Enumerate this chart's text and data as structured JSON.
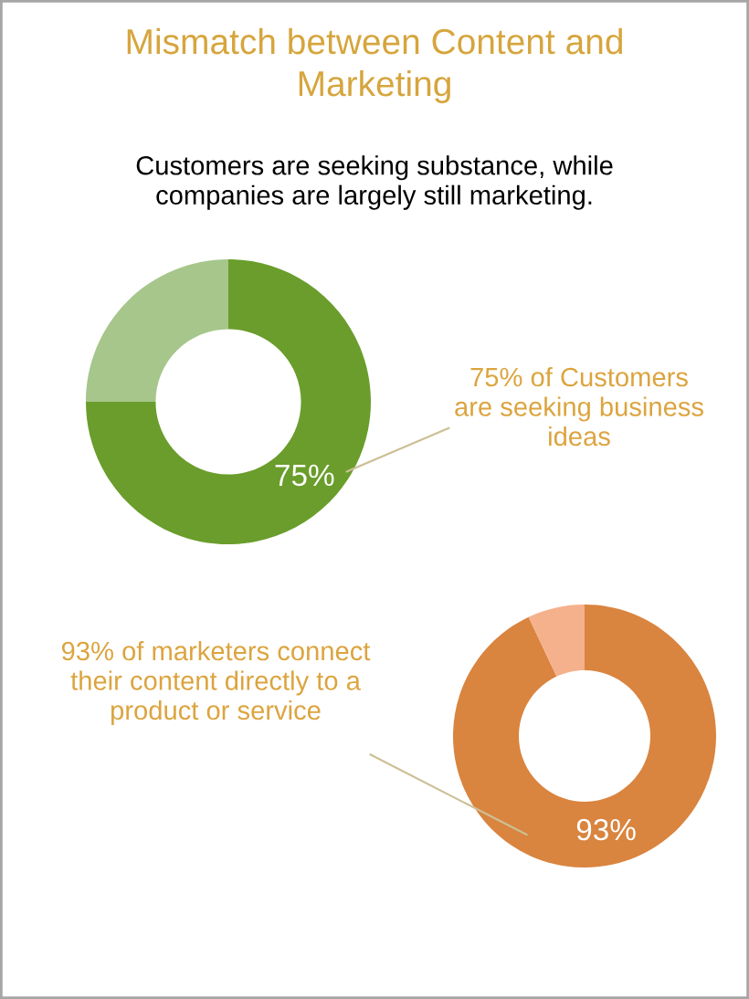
{
  "chart_data": [
    {
      "type": "donut",
      "title": "Mismatch between Content and\nMarketing",
      "subtitle": "Customers are seeking substance, while\ncompanies are largely still marketing.",
      "categories": [
        null,
        null
      ],
      "values": [
        75,
        25
      ],
      "colors": [
        "#6a9d2b",
        "#a6c68b"
      ],
      "value_labels": [
        "75%",
        null
      ],
      "annotations": [
        "75% of Customers\nare seeking business\nideas"
      ]
    },
    {
      "type": "donut",
      "categories": [
        null,
        null
      ],
      "values": [
        93,
        7
      ],
      "colors": [
        "#d9843f",
        "#f5b18c"
      ],
      "value_labels": [
        "93%",
        null
      ],
      "annotations": [
        "93% of marketers connect\ntheir content directly to a\nproduct or service"
      ]
    }
  ]
}
